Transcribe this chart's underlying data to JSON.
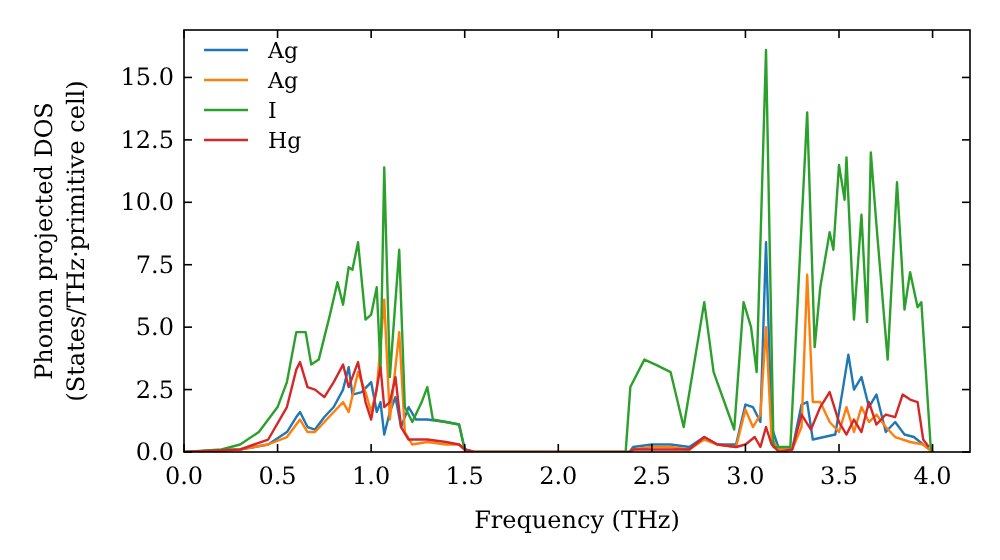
{
  "chart_data": {
    "type": "line",
    "xlabel": "Frequency (THz)",
    "ylabel": "Phonon projected DOS\n(States/THz·primitive cell)",
    "xlim": [
      0,
      4.2
    ],
    "ylim": [
      0,
      16.9
    ],
    "xticks": [
      {
        "value": 0,
        "label": "0.0"
      },
      {
        "value": 0.5,
        "label": "0.5"
      },
      {
        "value": 1,
        "label": "1.0"
      },
      {
        "value": 1.5,
        "label": "1.5"
      },
      {
        "value": 2,
        "label": "2.0"
      },
      {
        "value": 2.5,
        "label": "2.5"
      },
      {
        "value": 3,
        "label": "3.0"
      },
      {
        "value": 3.5,
        "label": "3.5"
      },
      {
        "value": 4,
        "label": "4.0"
      }
    ],
    "yticks": [
      {
        "value": 0,
        "label": "0.0"
      },
      {
        "value": 2.5,
        "label": "2.5"
      },
      {
        "value": 5,
        "label": "5.0"
      },
      {
        "value": 7.5,
        "label": "7.5"
      },
      {
        "value": 10,
        "label": "10.0"
      },
      {
        "value": 12.5,
        "label": "12.5"
      },
      {
        "value": 15,
        "label": "15.0"
      }
    ],
    "grid": false,
    "legend": "top left",
    "line_style": "solid",
    "series": [
      {
        "name": "Ag",
        "color": "#1f77b4",
        "x": [
          0,
          0.3,
          0.45,
          0.55,
          0.6,
          0.62,
          0.66,
          0.7,
          0.75,
          0.8,
          0.85,
          0.88,
          0.9,
          0.95,
          1.0,
          1.03,
          1.05,
          1.07,
          1.1,
          1.13,
          1.16,
          1.2,
          1.24,
          1.3,
          1.4,
          1.47,
          1.5,
          1.55,
          2.38,
          2.4,
          2.5,
          2.6,
          2.7,
          2.78,
          2.85,
          2.95,
          3.0,
          3.04,
          3.08,
          3.11,
          3.14,
          3.18,
          3.25,
          3.3,
          3.33,
          3.36,
          3.42,
          3.48,
          3.52,
          3.55,
          3.58,
          3.62,
          3.66,
          3.7,
          3.75,
          3.8,
          3.85,
          3.9,
          3.95,
          4.0
        ],
        "values": [
          0,
          0.1,
          0.3,
          0.8,
          1.4,
          1.6,
          1.0,
          0.9,
          1.4,
          1.8,
          2.5,
          3.4,
          2.3,
          2.4,
          2.8,
          1.6,
          2.0,
          0.7,
          1.6,
          2.2,
          1.0,
          1.8,
          1.3,
          1.3,
          1.2,
          1.1,
          0.1,
          0,
          0,
          0.2,
          0.3,
          0.3,
          0.2,
          0.6,
          0.3,
          0.3,
          1.9,
          1.8,
          1.2,
          8.4,
          1.0,
          0.1,
          0.1,
          1.9,
          2.0,
          0.5,
          0.6,
          0.7,
          2.5,
          3.9,
          2.5,
          3.0,
          1.8,
          2.3,
          0.8,
          1.2,
          0.7,
          0.6,
          0.3,
          0
        ]
      },
      {
        "name": "Ag",
        "color": "#ff7f0e",
        "x": [
          0,
          0.3,
          0.45,
          0.55,
          0.6,
          0.62,
          0.66,
          0.7,
          0.75,
          0.8,
          0.85,
          0.88,
          0.93,
          0.97,
          1.0,
          1.03,
          1.07,
          1.1,
          1.15,
          1.18,
          1.22,
          1.3,
          1.4,
          1.47,
          1.5,
          1.55,
          2.38,
          2.4,
          2.5,
          2.6,
          2.7,
          2.78,
          2.85,
          2.95,
          3.0,
          3.04,
          3.08,
          3.11,
          3.14,
          3.18,
          3.25,
          3.3,
          3.33,
          3.36,
          3.4,
          3.45,
          3.5,
          3.54,
          3.58,
          3.62,
          3.66,
          3.7,
          3.75,
          3.8,
          3.88,
          3.95,
          4.0
        ],
        "values": [
          0,
          0.1,
          0.3,
          0.6,
          1.1,
          1.3,
          0.8,
          0.8,
          1.2,
          1.6,
          2.0,
          1.6,
          3.2,
          2.4,
          1.6,
          2.5,
          6.1,
          1.3,
          4.8,
          0.8,
          0.3,
          0.4,
          0.3,
          0.3,
          0.1,
          0,
          0,
          0.1,
          0.2,
          0.2,
          0.1,
          0.5,
          0.3,
          0.2,
          1.7,
          1.0,
          1.5,
          5.0,
          0.5,
          0.1,
          0.1,
          1.0,
          7.1,
          2.0,
          2.0,
          1.2,
          0.8,
          1.8,
          0.8,
          1.8,
          1.2,
          1.5,
          1.0,
          0.6,
          0.4,
          0.3,
          0
        ]
      },
      {
        "name": "I",
        "color": "#2ca02c",
        "x": [
          0,
          0.2,
          0.3,
          0.4,
          0.5,
          0.55,
          0.6,
          0.65,
          0.68,
          0.72,
          0.78,
          0.82,
          0.85,
          0.88,
          0.9,
          0.93,
          0.97,
          1.0,
          1.03,
          1.05,
          1.07,
          1.1,
          1.15,
          1.18,
          1.22,
          1.27,
          1.3,
          1.33,
          1.4,
          1.47,
          1.5,
          1.55,
          2.36,
          2.385,
          2.46,
          2.52,
          2.6,
          2.67,
          2.78,
          2.83,
          2.94,
          2.99,
          3.03,
          3.06,
          3.11,
          3.15,
          3.24,
          3.33,
          3.37,
          3.4,
          3.45,
          3.47,
          3.5,
          3.53,
          3.54,
          3.58,
          3.62,
          3.65,
          3.67,
          3.7,
          3.76,
          3.81,
          3.85,
          3.88,
          3.92,
          3.94,
          3.99,
          4.0
        ],
        "values": [
          0,
          0.1,
          0.3,
          0.8,
          1.8,
          2.8,
          4.8,
          4.8,
          3.5,
          3.7,
          5.5,
          6.8,
          5.9,
          7.4,
          7.3,
          8.4,
          5.3,
          5.5,
          6.6,
          3.3,
          11.4,
          3.0,
          8.1,
          1.8,
          1.2,
          2.0,
          2.6,
          1.3,
          1.2,
          1.1,
          0.1,
          0,
          0,
          2.6,
          3.7,
          3.5,
          3.2,
          1.0,
          6.0,
          3.2,
          0.9,
          6.0,
          5.0,
          3.2,
          16.1,
          0.2,
          0.2,
          13.6,
          4.2,
          6.6,
          8.8,
          8.1,
          11.5,
          10.1,
          11.8,
          5.3,
          9.5,
          5.2,
          12.0,
          9.1,
          3.7,
          10.8,
          5.7,
          7.2,
          5.8,
          6.0,
          0.2,
          0
        ]
      },
      {
        "name": "Hg",
        "color": "#d62728",
        "x": [
          0,
          0.3,
          0.45,
          0.55,
          0.6,
          0.62,
          0.66,
          0.7,
          0.75,
          0.8,
          0.85,
          0.88,
          0.93,
          0.97,
          1.0,
          1.05,
          1.07,
          1.1,
          1.13,
          1.16,
          1.2,
          1.3,
          1.4,
          1.47,
          1.5,
          1.55,
          2.38,
          2.4,
          2.5,
          2.6,
          2.7,
          2.78,
          2.85,
          2.95,
          3.0,
          3.05,
          3.08,
          3.11,
          3.14,
          3.18,
          3.25,
          3.3,
          3.35,
          3.4,
          3.45,
          3.5,
          3.54,
          3.58,
          3.62,
          3.66,
          3.7,
          3.75,
          3.8,
          3.84,
          3.88,
          3.92,
          3.95,
          3.98
        ],
        "values": [
          0,
          0.1,
          0.5,
          1.8,
          3.3,
          3.6,
          2.6,
          2.5,
          2.2,
          2.8,
          3.5,
          2.6,
          3.6,
          2.0,
          1.3,
          3.4,
          1.8,
          2.0,
          3.0,
          1.0,
          0.5,
          0.5,
          0.4,
          0.3,
          0.1,
          0,
          0,
          0.1,
          0.1,
          0.1,
          0.1,
          0.6,
          0.3,
          0.2,
          0.3,
          0.6,
          0.2,
          1.0,
          0.3,
          0,
          0.1,
          1.5,
          0.9,
          1.8,
          2.4,
          1.2,
          0.7,
          1.3,
          0.8,
          2.0,
          1.1,
          1.5,
          1.4,
          2.3,
          2.1,
          2.0,
          0.5,
          0.2
        ]
      }
    ]
  }
}
